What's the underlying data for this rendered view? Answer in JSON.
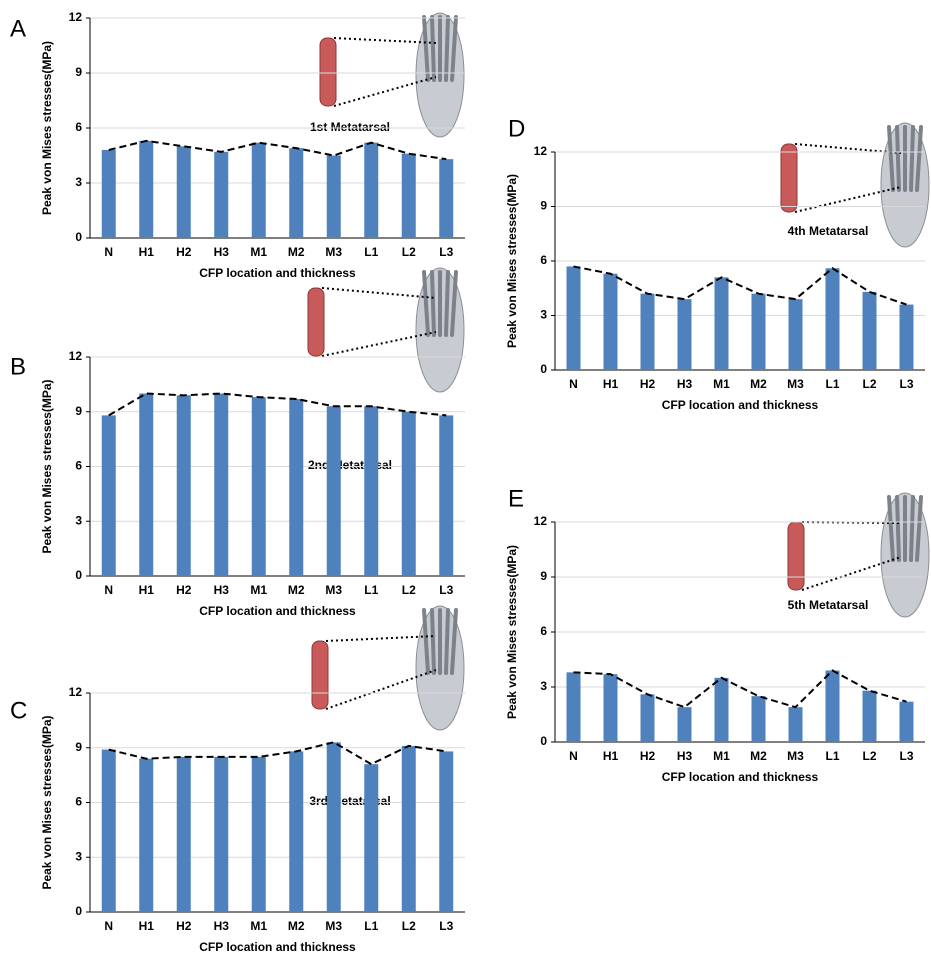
{
  "chart_data": [
    {
      "type": "bar",
      "panel_label": "A",
      "annotation": "1st Metatarsal",
      "y_label": "Peak von Mises stresses(MPa)",
      "x_label": "CFP location and thickness",
      "categories": [
        "N",
        "H1",
        "H2",
        "H3",
        "M1",
        "M2",
        "M3",
        "L1",
        "L2",
        "L3"
      ],
      "values": [
        4.8,
        5.3,
        5.0,
        4.7,
        5.2,
        4.9,
        4.5,
        5.2,
        4.6,
        4.3
      ],
      "color": "#4f81bd",
      "trend_line": true,
      "ylim": [
        0,
        12
      ],
      "yticks": [
        0,
        3,
        6,
        9,
        12
      ],
      "grid": true
    },
    {
      "type": "bar",
      "panel_label": "B",
      "annotation": "2nd Metatarsal",
      "y_label": "Peak von Mises stresses(MPa)",
      "x_label": "CFP location and thickness",
      "categories": [
        "N",
        "H1",
        "H2",
        "H3",
        "M1",
        "M2",
        "M3",
        "L1",
        "L2",
        "L3"
      ],
      "values": [
        8.8,
        10.0,
        9.9,
        10.0,
        9.8,
        9.7,
        9.3,
        9.3,
        9.0,
        8.8
      ],
      "color": "#4f81bd",
      "trend_line": true,
      "ylim": [
        0,
        12
      ],
      "yticks": [
        0,
        3,
        6,
        9,
        12
      ],
      "grid": true
    },
    {
      "type": "bar",
      "panel_label": "C",
      "annotation": "3rd Metatarsal",
      "y_label": "Peak von Mises stresses(MPa)",
      "x_label": "CFP location and thickness",
      "categories": [
        "N",
        "H1",
        "H2",
        "H3",
        "M1",
        "M2",
        "M3",
        "L1",
        "L2",
        "L3"
      ],
      "values": [
        8.9,
        8.4,
        8.5,
        8.5,
        8.5,
        8.8,
        9.3,
        8.1,
        9.1,
        8.8
      ],
      "color": "#4f81bd",
      "trend_line": true,
      "ylim": [
        0,
        12
      ],
      "yticks": [
        0,
        3,
        6,
        9,
        12
      ],
      "grid": true
    },
    {
      "type": "bar",
      "panel_label": "D",
      "annotation": "4th Metatarsal",
      "y_label": "Peak von Mises stresses(MPa)",
      "x_label": "CFP location and thickness",
      "categories": [
        "N",
        "H1",
        "H2",
        "H3",
        "M1",
        "M2",
        "M3",
        "L1",
        "L2",
        "L3"
      ],
      "values": [
        5.7,
        5.3,
        4.2,
        3.9,
        5.1,
        4.2,
        3.9,
        5.6,
        4.3,
        3.6
      ],
      "color": "#4f81bd",
      "trend_line": true,
      "ylim": [
        0,
        12
      ],
      "yticks": [
        0,
        3,
        6,
        9,
        12
      ],
      "grid": true
    },
    {
      "type": "bar",
      "panel_label": "E",
      "annotation": "5th Metatarsal",
      "y_label": "Peak von Mises stresses(MPa)",
      "x_label": "CFP location and thickness",
      "categories": [
        "N",
        "H1",
        "H2",
        "H3",
        "M1",
        "M2",
        "M3",
        "L1",
        "L2",
        "L3"
      ],
      "values": [
        3.8,
        3.7,
        2.6,
        1.9,
        3.5,
        2.5,
        1.9,
        3.9,
        2.8,
        2.2
      ],
      "color": "#4f81bd",
      "trend_line": true,
      "ylim": [
        0,
        12
      ],
      "yticks": [
        0,
        3,
        6,
        9,
        12
      ],
      "grid": true
    }
  ]
}
